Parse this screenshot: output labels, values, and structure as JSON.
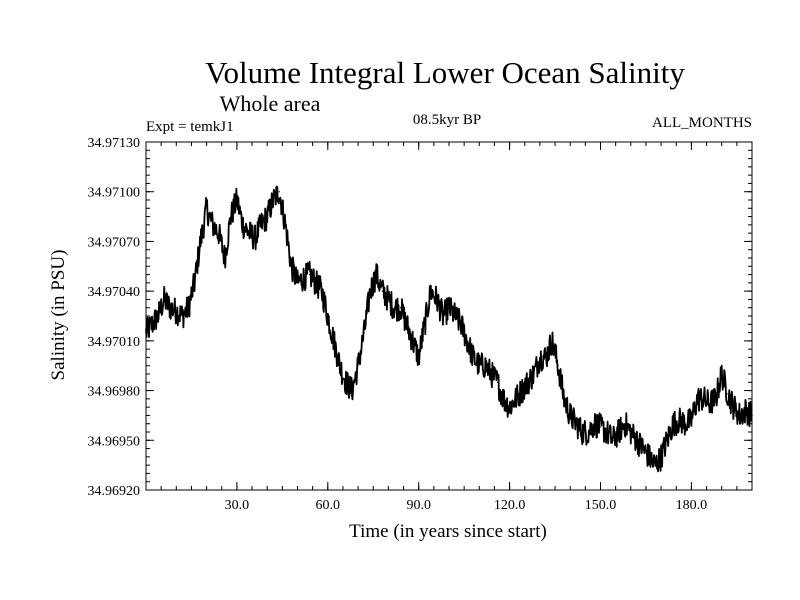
{
  "chart_data": {
    "type": "line",
    "title": "Volume Integral Lower Ocean Salinity",
    "subtitle": "Whole area",
    "expt_label": "Expt = temkJ1",
    "period_label": "08.5kyr BP",
    "months_label": "ALL_MONTHS",
    "xlabel": "Time (in years since start)",
    "ylabel": "Salinity (in PSU)",
    "xlim": [
      0,
      200
    ],
    "ylim": [
      34.9692,
      34.9713
    ],
    "x_ticks": [
      30,
      60,
      90,
      120,
      150,
      180
    ],
    "x_tick_labels": [
      "30.0",
      "60.0",
      "90.0",
      "120.0",
      "150.0",
      "180.0"
    ],
    "y_ticks": [
      34.9692,
      34.9695,
      34.9698,
      34.9701,
      34.9704,
      34.9707,
      34.971,
      34.9713
    ],
    "y_tick_labels": [
      "34.96920",
      "34.96950",
      "34.96980",
      "34.97010",
      "34.97040",
      "34.97070",
      "34.97100",
      "34.97130"
    ],
    "grid": false,
    "line_color": "#000000",
    "series": [
      {
        "name": "Lower ocean salinity",
        "x": [
          0,
          2,
          4,
          6,
          8,
          10,
          12,
          14,
          16,
          18,
          20,
          22,
          24,
          26,
          28,
          30,
          32,
          34,
          36,
          38,
          40,
          42,
          44,
          46,
          48,
          50,
          52,
          54,
          56,
          58,
          60,
          62,
          64,
          66,
          68,
          70,
          72,
          74,
          76,
          78,
          80,
          82,
          84,
          86,
          88,
          90,
          92,
          94,
          96,
          98,
          100,
          102,
          104,
          106,
          108,
          110,
          112,
          114,
          116,
          118,
          120,
          122,
          124,
          126,
          128,
          130,
          132,
          134,
          136,
          138,
          140,
          142,
          144,
          146,
          148,
          150,
          152,
          154,
          156,
          158,
          160,
          162,
          164,
          166,
          168,
          170,
          172,
          174,
          176,
          178,
          180,
          182,
          184,
          186,
          188,
          190,
          192,
          194,
          196,
          198,
          200
        ],
        "values": [
          34.97015,
          34.9702,
          34.97025,
          34.97035,
          34.9703,
          34.97028,
          34.97025,
          34.9703,
          34.97045,
          34.9707,
          34.9709,
          34.9708,
          34.97075,
          34.9706,
          34.97085,
          34.97095,
          34.9708,
          34.97075,
          34.97072,
          34.9708,
          34.97085,
          34.97095,
          34.971,
          34.9708,
          34.97055,
          34.97045,
          34.97048,
          34.9705,
          34.97045,
          34.9704,
          34.97025,
          34.9701,
          34.96995,
          34.96985,
          34.9698,
          34.96995,
          34.97015,
          34.9704,
          34.9705,
          34.9704,
          34.97035,
          34.9703,
          34.9703,
          34.9702,
          34.9701,
          34.97,
          34.9702,
          34.9704,
          34.97035,
          34.97025,
          34.9703,
          34.97025,
          34.9702,
          34.9701,
          34.97,
          34.96995,
          34.96995,
          34.9699,
          34.96985,
          34.96975,
          34.9697,
          34.96975,
          34.9698,
          34.96985,
          34.9699,
          34.97,
          34.97,
          34.9701,
          34.96995,
          34.96975,
          34.96965,
          34.9696,
          34.96955,
          34.96955,
          34.9696,
          34.96958,
          34.96955,
          34.9695,
          34.96955,
          34.9696,
          34.96955,
          34.9695,
          34.96945,
          34.9694,
          34.96935,
          34.9694,
          34.9695,
          34.9696,
          34.96962,
          34.9696,
          34.96962,
          34.96975,
          34.96975,
          34.96972,
          34.96975,
          34.9699,
          34.96978,
          34.9697,
          34.96965,
          34.96968,
          34.96965
        ]
      }
    ]
  }
}
